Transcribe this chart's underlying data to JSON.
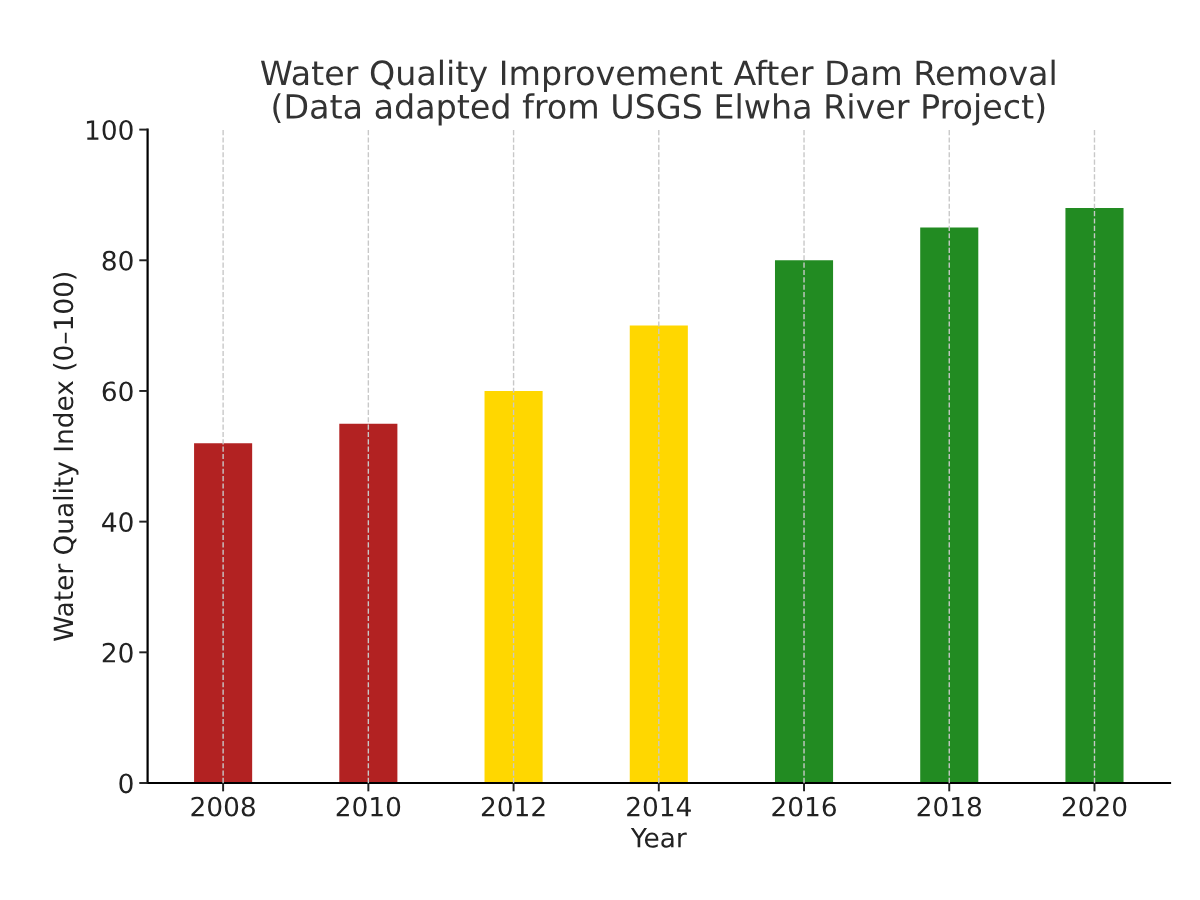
{
  "chart_data": {
    "type": "bar",
    "title": "Water Quality Improvement After Dam Removal\n(Data adapted from USGS Elwha River Project)",
    "xlabel": "Year",
    "ylabel": "Water Quality Index (0–100)",
    "categories": [
      "2008",
      "2010",
      "2012",
      "2014",
      "2016",
      "2018",
      "2020"
    ],
    "values": [
      52,
      55,
      60,
      70,
      80,
      85,
      88
    ],
    "colors": [
      "#b22222",
      "#b22222",
      "#ffd700",
      "#ffd700",
      "#228b22",
      "#228b22",
      "#228b22"
    ],
    "ylim": [
      0,
      100
    ],
    "yticks": [
      0,
      20,
      40,
      60,
      80,
      100
    ],
    "grid": "x",
    "line_style": "dashed"
  }
}
